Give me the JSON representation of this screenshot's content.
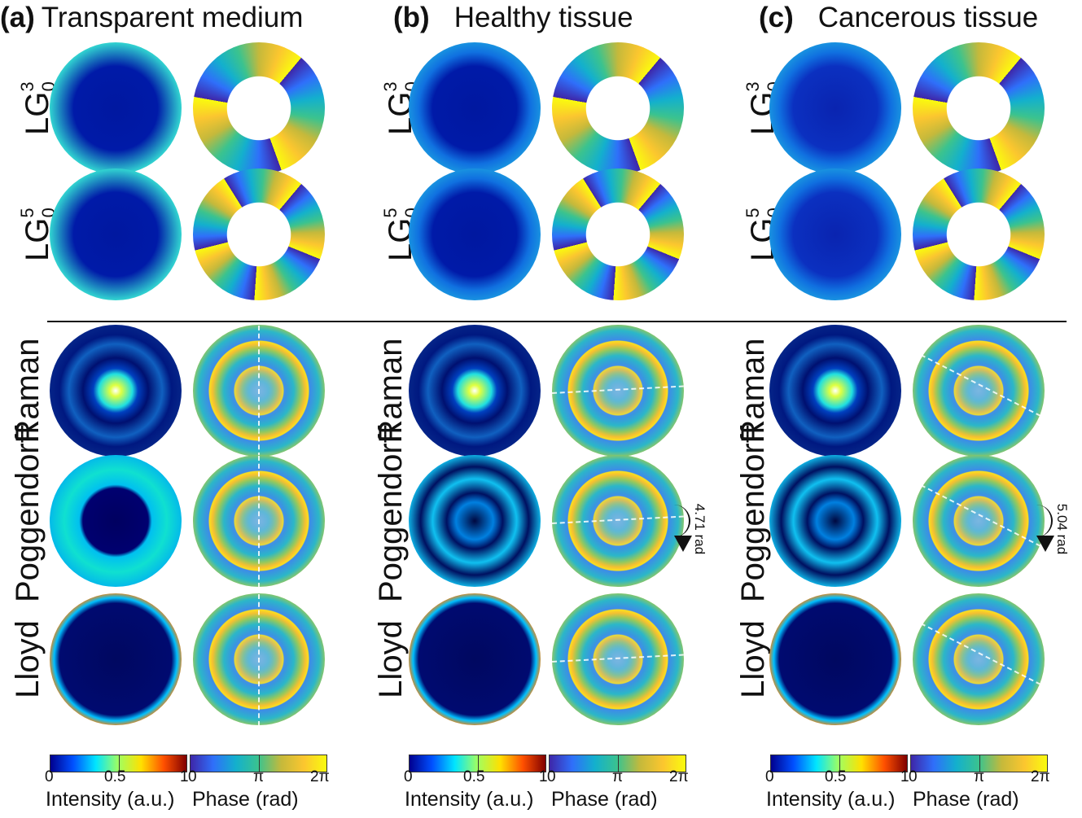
{
  "panels": [
    {
      "letter": "(a)",
      "title": "Transparent medium",
      "annotation": ""
    },
    {
      "letter": "(b)",
      "title": "Healthy tissue",
      "annotation": "4.71 rad"
    },
    {
      "letter": "(c)",
      "title": "Cancerous tissue",
      "annotation": "5.04 rad"
    }
  ],
  "rows": [
    {
      "label": "LG",
      "sup": "3",
      "sub": "0"
    },
    {
      "label": "LG",
      "sup": "5",
      "sub": "0"
    },
    {
      "label": "Raman"
    },
    {
      "label": "Poggendorff"
    },
    {
      "label": "Lloyd"
    }
  ],
  "colorbars": {
    "intensity": {
      "label": "Intensity (a.u.)",
      "ticks": [
        "0",
        "0.5",
        "1"
      ],
      "colormap": "jet"
    },
    "phase": {
      "label": "Phase (rad)",
      "ticks": [
        "0",
        "π",
        "2π"
      ],
      "colormap": "parula"
    }
  },
  "colors": {
    "jet": [
      "#00008f",
      "#0050ff",
      "#00e5ff",
      "#a0ff60",
      "#ffe000",
      "#ff5000",
      "#800000"
    ],
    "parula": [
      "#3e26a8",
      "#2f6ffa",
      "#13b0cd",
      "#3bc38e",
      "#c5b93b",
      "#fbc62f",
      "#f9fb0e"
    ]
  }
}
